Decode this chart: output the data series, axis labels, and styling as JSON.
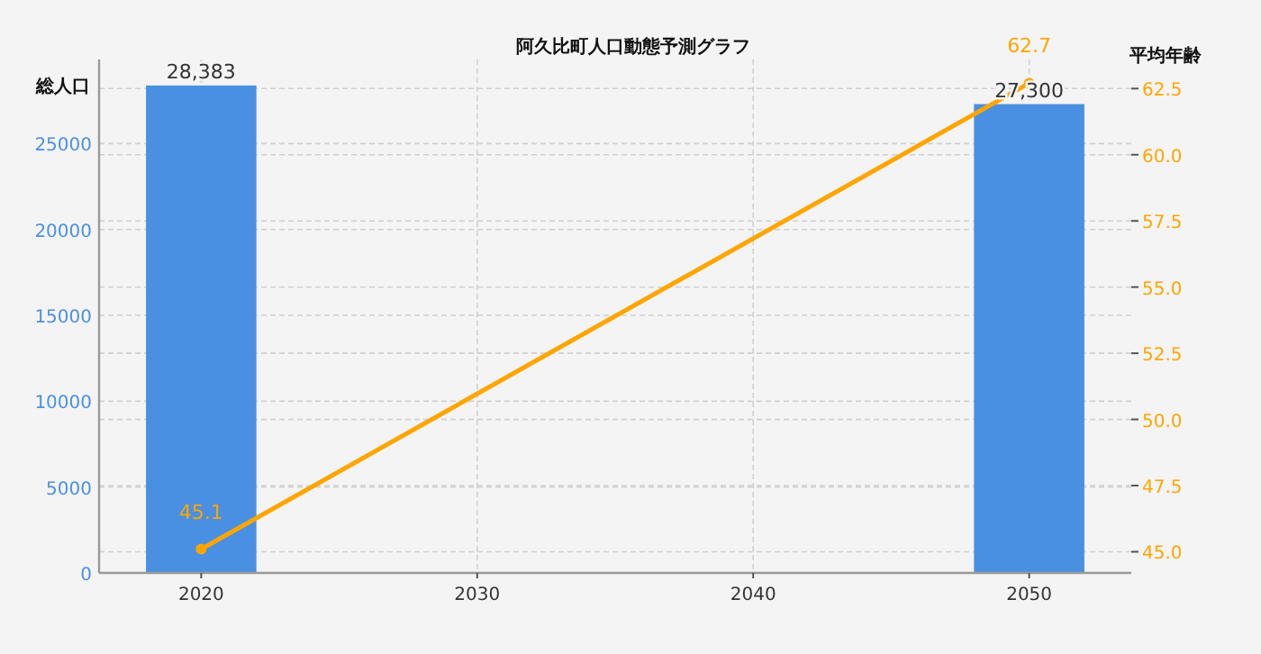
{
  "chart_data": {
    "type": "bar",
    "title": "阿久比町人口動態予測グラフ",
    "ylabel": "総人口",
    "y2label": "平均年齢",
    "x": [
      2020,
      2050
    ],
    "xlim": [
      2016.3,
      2053.7
    ],
    "xticks": [
      2020,
      2030,
      2040,
      2050
    ],
    "ylim": [
      0,
      29900
    ],
    "yticks": [
      0,
      5000,
      10000,
      15000,
      20000,
      25000
    ],
    "y2lim": [
      44.2,
      63.6
    ],
    "y2ticks": [
      {
        "value": 45,
        "label": "45.0"
      },
      {
        "value": 47.5,
        "label": "47.5"
      },
      {
        "value": 50,
        "label": "50.0"
      },
      {
        "value": 52.5,
        "label": "52.5"
      },
      {
        "value": 55,
        "label": "55.0"
      },
      {
        "value": 57.5,
        "label": "57.5"
      },
      {
        "value": 60,
        "label": "60.0"
      },
      {
        "value": 62.5,
        "label": "62.5"
      }
    ],
    "grid": true,
    "series": [
      {
        "type": "bar",
        "color": "#4a90e2",
        "values": [
          28383,
          27300
        ],
        "value_labels": [
          "28,383",
          "27,300"
        ]
      },
      {
        "type": "line",
        "axis": "y2",
        "color": "#ffa500",
        "marker": "circle",
        "values": [
          45.1,
          62.7
        ],
        "value_labels": [
          "45.1",
          "62.7"
        ]
      }
    ]
  }
}
